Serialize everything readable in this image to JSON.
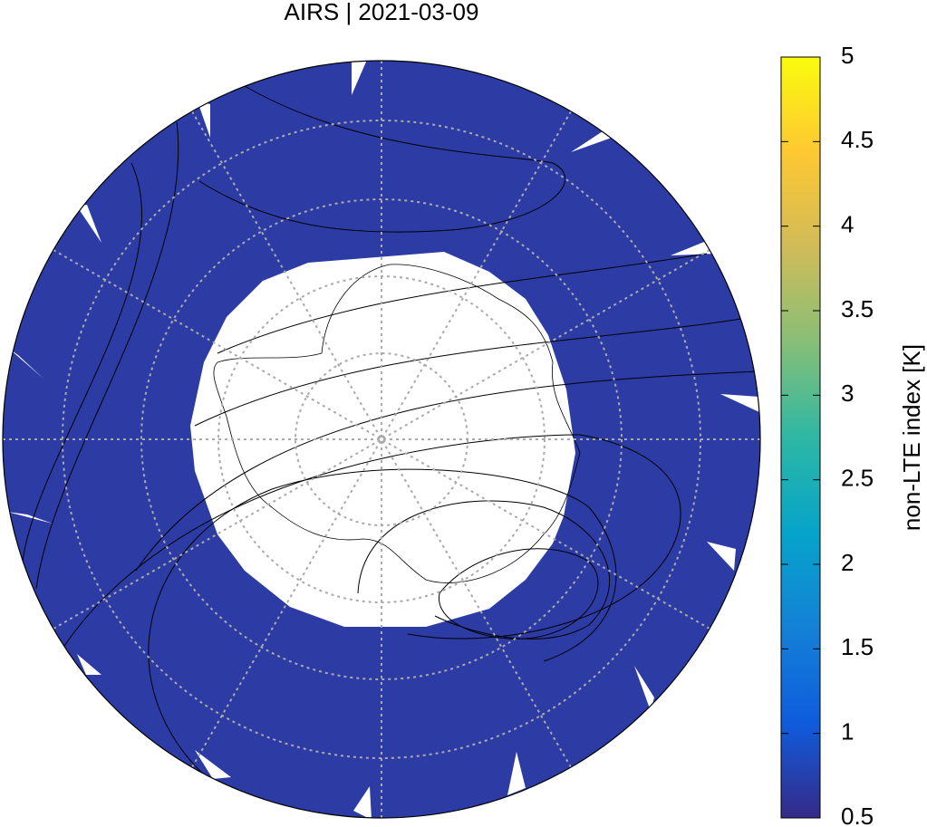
{
  "map": {
    "title": "AIRS | 2021-03-09",
    "colorbar": {
      "label": "non-LTE index [K]",
      "range": [
        0.5,
        5
      ],
      "ticks": [
        0.5,
        1,
        1.5,
        2,
        2.5,
        3,
        3.5,
        4,
        4.5,
        5
      ],
      "colors": [
        "#352a87",
        "#0f5cdd",
        "#1481d6",
        "#06a4ca",
        "#2eb7a4",
        "#87bf77",
        "#d1bb59",
        "#fec832",
        "#f9fb0e"
      ]
    }
  }
}
